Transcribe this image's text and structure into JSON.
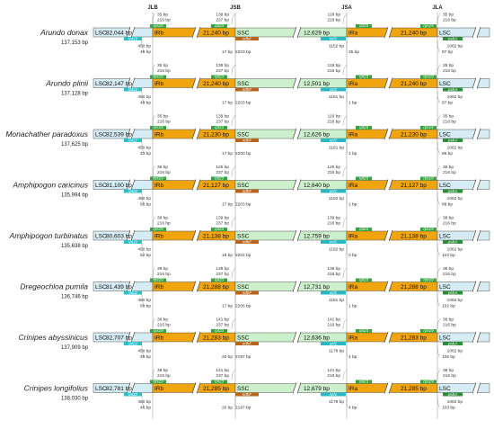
{
  "junctions": [
    "JLB",
    "JSB",
    "JSA",
    "JLA"
  ],
  "colors": {
    "lsc": "#d5ecf4",
    "ir": "#f0a40d",
    "ssc": "#ccefcc",
    "rps": "#2bbfca",
    "rpl": "#35a33e",
    "ndh": "#b8651b",
    "ycf": "#29b7c4",
    "psb": "#2e8b37",
    "jline": "#bbbbbb"
  },
  "genomes": [
    {
      "name": "Arundo donax",
      "length": "137,153 bp",
      "lsc": "LSC",
      "lsc_len": "82,044 bp",
      "irb": "IRb",
      "irb_len": "21,240 bp",
      "ssc": "SSC",
      "ssc_len": "12,629 bp",
      "ira": "IRa",
      "ira_len": "21,240 bp",
      "lsc2": "LSC",
      "top": [
        "35 bp",
        "216 bp",
        "138 bp",
        "237 bp",
        "118 bp",
        "216 bp",
        "35 bp",
        "216 bp"
      ],
      "bottom": [
        "450 bp",
        "49 bp",
        "17 bp",
        "2203 bp",
        "1152 bp",
        "35 bp",
        "1062 bp",
        "87 bp"
      ],
      "genes": {
        "rps19": "rps19",
        "rpl22": "rpl22",
        "rpl23": "rpl23",
        "ndhF": "ndhF",
        "ycf1": "ycf1",
        "rpl23b": "rpl23",
        "rps19b": "rps19",
        "psbA": "psbA"
      }
    },
    {
      "name": "Arundo plinii",
      "length": "137,128 bp",
      "lsc": "LSC",
      "lsc_len": "82,147 bp",
      "irb": "IRb",
      "irb_len": "21,240 bp",
      "ssc": "SSC",
      "ssc_len": "12,501 bp",
      "ira": "IRa",
      "ira_len": "21,240 bp",
      "lsc2": "LSC",
      "top": [
        "35 bp",
        "216 bp",
        "138 bp",
        "237 bp",
        "118 bp",
        "216 bp",
        "35 bp",
        "216 bp"
      ],
      "bottom": [
        "450 bp",
        "49 bp",
        "17 bp",
        "2203 bp",
        "1181 bp",
        "1 bp",
        "1062 bp",
        "87 bp"
      ],
      "genes": {
        "rps19": "rps19",
        "rpl22": "rpl22",
        "rpl23": "rpl23",
        "ndhF": "ndhF",
        "ycf1": "ycf1",
        "rpl23b": "rpl23",
        "rps19b": "rps19",
        "psbA": "psbA"
      }
    },
    {
      "name": "Monachather paradoxus",
      "length": "137,625 bp",
      "lsc": "LSC",
      "lsc_len": "82,539 bp",
      "irb": "IRb",
      "irb_len": "21,230 bp",
      "ssc": "SSC",
      "ssc_len": "12,626 bp",
      "ira": "IRa",
      "ira_len": "21,230 bp",
      "lsc2": "LSC",
      "top": [
        "35 bp",
        "216 bp",
        "139 bp",
        "237 bp",
        "119 bp",
        "216 bp",
        "35 bp",
        "216 bp"
      ],
      "bottom": [
        "450 bp",
        "43 bp",
        "17 bp",
        "2200 bp",
        "1181 bp",
        "1 bp",
        "1062 bp",
        "86 bp"
      ],
      "genes": {
        "rps19": "rps19",
        "rpl22": "rpl22",
        "rpl23": "rpl23",
        "ndhF": "ndhF",
        "ycf1": "ycf1",
        "rpl23b": "rpl23",
        "rps19b": "rps19",
        "psbA": "psbA"
      }
    },
    {
      "name": "Amphipogon caricinus",
      "length": "135,994 bp",
      "lsc": "LSC",
      "lsc_len": "81,100 bp",
      "irb": "IRb",
      "irb_len": "21,127 bp",
      "ssc": "SSC",
      "ssc_len": "12,640 bp",
      "ira": "IRa",
      "ira_len": "21,127 bp",
      "lsc2": "LSC",
      "top": [
        "36 bp",
        "216 bp",
        "125 bp",
        "237 bp",
        "125 bp",
        "216 bp",
        "36 bp",
        "216 bp"
      ],
      "bottom": [
        "450 bp",
        "50 bp",
        "17 bp",
        "2203 bp",
        "1182 bp",
        "1 bp",
        "1062 bp",
        "88 bp"
      ],
      "genes": {
        "rps19": "rps19",
        "rpl22": "rpl22",
        "rpl23": "rpl23",
        "ndhF": "ndhF",
        "ycf1": "ycf1",
        "rpl23b": "rpl23",
        "rps19b": "rps19",
        "psbA": "psbA"
      }
    },
    {
      "name": "Amphipogon turbinatus",
      "length": "135,638 bp",
      "lsc": "LSC",
      "lsc_len": "80,603 bp",
      "irb": "IRb",
      "irb_len": "21,138 bp",
      "ssc": "SSC",
      "ssc_len": "12,759 bp",
      "ira": "IRa",
      "ira_len": "21,138 bp",
      "lsc2": "LSC",
      "top": [
        "38 bp",
        "216 bp",
        "139 bp",
        "237 bp",
        "139 bp",
        "216 bp",
        "38 bp",
        "216 bp"
      ],
      "bottom": [
        "450 bp",
        "52 bp",
        "18 bp",
        "2202 bp",
        "1182 bp",
        "0 bp",
        "1062 bp",
        "103 bp"
      ],
      "genes": {
        "rps19": "rps19",
        "rpl22": "rpl22",
        "rpl23": "rpl23",
        "ndhF": "ndhF",
        "ycf1": "ycf1",
        "rpl23b": "rpl23",
        "rps19b": "rps19",
        "psbA": "psbA"
      }
    },
    {
      "name": "Dregeochloa pumila",
      "length": "136,746 bp",
      "lsc": "LSC",
      "lsc_len": "81,439 bp",
      "irb": "IRb",
      "irb_len": "21,288 bp",
      "ssc": "SSC",
      "ssc_len": "12,731 bp",
      "ira": "IRa",
      "ira_len": "21,288 bp",
      "lsc2": "LSC",
      "top": [
        "39 bp",
        "216 bp",
        "139 bp",
        "237 bp",
        "139 bp",
        "216 bp",
        "39 bp",
        "216 bp"
      ],
      "bottom": [
        "450 bp",
        "50 bp",
        "17 bp",
        "2206 bp",
        "1181 bp",
        "1 bp",
        "1062 bp",
        "102 bp"
      ],
      "genes": {
        "rps19": "rps19",
        "rpl22": "rpl22",
        "rpl23": "rpl23",
        "ndhF": "ndhF",
        "ycf1": "ycf1",
        "rpl23b": "rpl23",
        "rps19b": "rps19",
        "psbA": "psbA"
      }
    },
    {
      "name": "Crinipes abyssinicus",
      "length": "137,909 bp",
      "lsc": "LSC",
      "lsc_len": "82,707 bp",
      "irb": "IRb",
      "irb_len": "21,283 bp",
      "ssc": "SSC",
      "ssc_len": "12,636 bp",
      "ira": "IRa",
      "ira_len": "21,283 bp",
      "lsc2": "LSC",
      "top": [
        "36 bp",
        "216 bp",
        "141 bp",
        "237 bp",
        "141 bp",
        "216 bp",
        "36 bp",
        "216 bp"
      ],
      "bottom": [
        "450 bp",
        "48 bp",
        "20 bp",
        "2197 bp",
        "1178 bp",
        "4 bp",
        "1062 bp",
        "105 bp"
      ],
      "genes": {
        "rps19": "rps19",
        "rpl22": "rpl22",
        "rpl23": "rpl23",
        "ndhF": "ndhF",
        "ycf1": "ycf1",
        "rpl23b": "rpl23",
        "rps19b": "rps19",
        "psbA": "psbA"
      }
    },
    {
      "name": "Crinipes longifolius",
      "length": "138,030 bp",
      "lsc": "LSC",
      "lsc_len": "82,781 bp",
      "irb": "IRb",
      "irb_len": "21,285 bp",
      "ssc": "SSC",
      "ssc_len": "12,679 bp",
      "ira": "IRa",
      "ira_len": "21,285 bp",
      "lsc2": "LSC",
      "top": [
        "38 bp",
        "216 bp",
        "141 bp",
        "237 bp",
        "141 bp",
        "216 bp",
        "38 bp",
        "216 bp"
      ],
      "bottom": [
        "450 bp",
        "46 bp",
        "20 bp",
        "2197 bp",
        "1178 bp",
        "4 bp",
        "1062 bp",
        "103 bp"
      ],
      "genes": {
        "rps19": "rps19",
        "rpl22": "rpl22",
        "rpl23": "rpl23",
        "ndhF": "ndhF",
        "ycf1": "ycf1",
        "rpl23b": "rpl23",
        "rps19b": "rps19",
        "psbA": "psbA"
      }
    }
  ]
}
